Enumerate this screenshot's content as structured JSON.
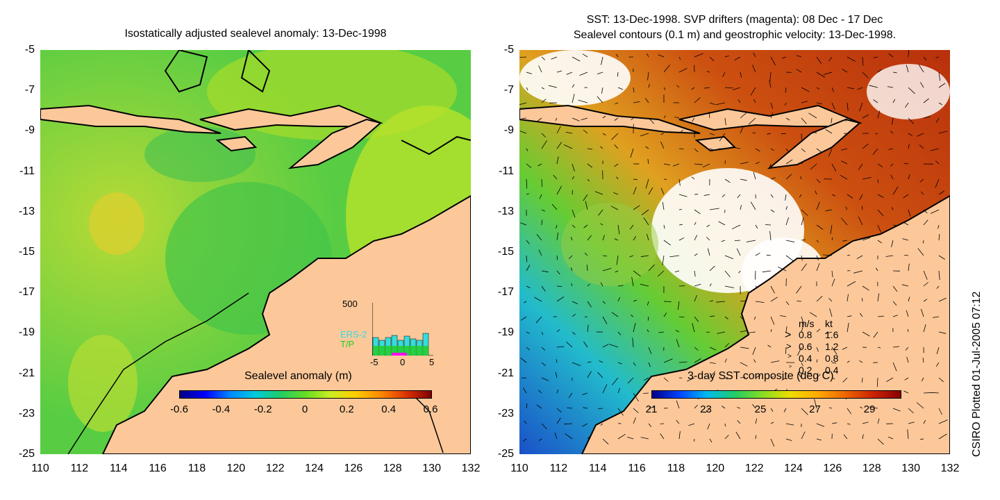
{
  "left_panel": {
    "title": "Isostatically adjusted sealevel anomaly: 13-Dec-1998",
    "colorbar_title": "Sealevel anomaly (m)",
    "colorbar_ticks": [
      "-0.6",
      "-0.4",
      "-0.2",
      "0",
      "0.2",
      "0.4",
      "0.6"
    ],
    "histogram": {
      "ymax_label": "500",
      "legend": [
        "ERS-2",
        "T/P"
      ],
      "legend_colors": [
        "#33dddd",
        "#22cc22"
      ],
      "xticks": [
        "-5",
        "0",
        "5"
      ]
    }
  },
  "right_panel": {
    "title_line1": "SST: 13-Dec-1998. SVP drifters (magenta): 08 Dec - 17 Dec",
    "title_line2": "Sealevel contours (0.1 m) and geostrophic velocity: 13-Dec-1998.",
    "colorbar_title": "3-day SST composite (deg C)",
    "colorbar_ticks": [
      "21",
      "23",
      "25",
      "27",
      "29"
    ],
    "speed_legend": {
      "header_ms": "m/s",
      "header_kt": "kt",
      "rows": [
        {
          "ms": "0.8",
          "kt": "1.6"
        },
        {
          "ms": "0.6",
          "kt": "1.2"
        },
        {
          "ms": "0.4",
          "kt": "0.8"
        },
        {
          "ms": "0.2",
          "kt": "0.4"
        }
      ]
    }
  },
  "axes": {
    "y_ticks": [
      "-5",
      "-7",
      "-9",
      "-11",
      "-13",
      "-15",
      "-17",
      "-19",
      "-21",
      "-23",
      "-25"
    ],
    "x_ticks": [
      "110",
      "112",
      "114",
      "116",
      "118",
      "120",
      "122",
      "124",
      "126",
      "128",
      "130",
      "132"
    ]
  },
  "credit": "CSIRO Plotted 01-Jul-2005 07:12",
  "colors": {
    "land": "#fcc89a",
    "ocean_low": "#22cc33",
    "ocean_high": "#ccee22",
    "sst_warm": "#b8300c",
    "sst_cool": "#1a50c8"
  }
}
